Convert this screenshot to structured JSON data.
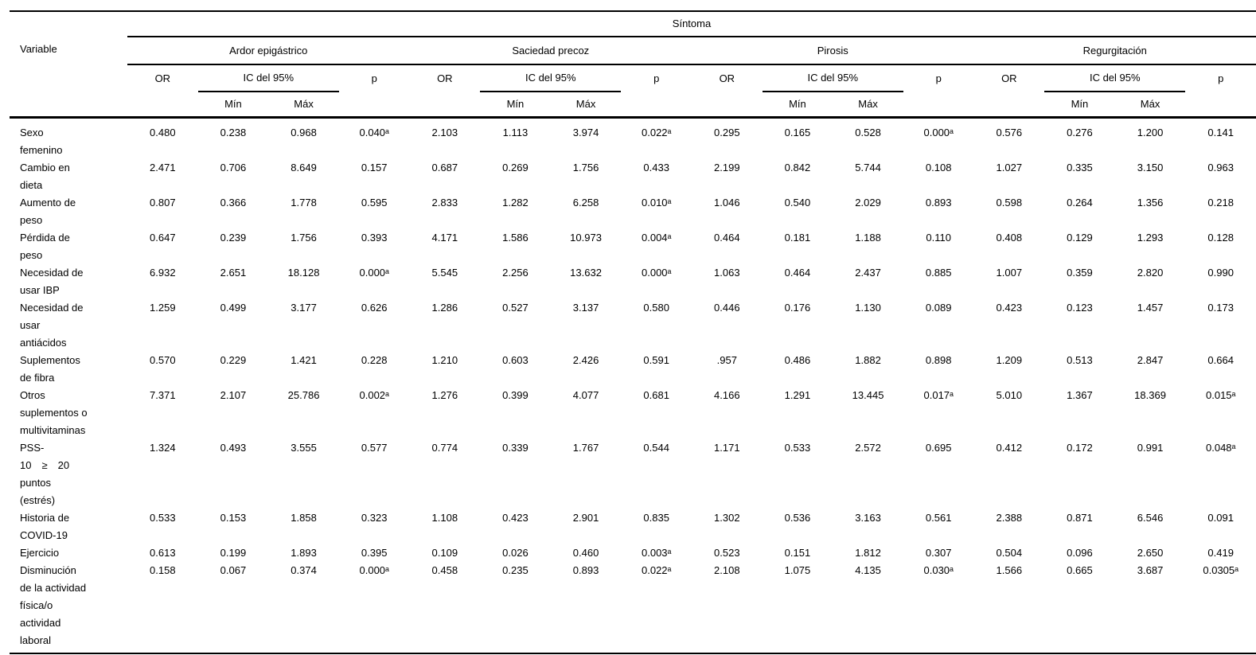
{
  "colors": {
    "background": "#ffffff",
    "text": "#000000",
    "rule": "#000000"
  },
  "table": {
    "corner_header": "Variable",
    "span_header": "Síntoma",
    "groups": [
      "Ardor epigástrico",
      "Saciedad precoz",
      "Pirosis",
      "Regurgitación"
    ],
    "stat_headers": {
      "or": "OR",
      "ic": "IC del 95%",
      "p": "p",
      "min": "Mín",
      "max": "Máx"
    },
    "rows": [
      {
        "label": "Sexo\nfemenino",
        "values": [
          "0.480",
          "0.238",
          "0.968",
          "0.040ᵃ",
          "2.103",
          "1.113",
          "3.974",
          "0.022ᵃ",
          "0.295",
          "0.165",
          "0.528",
          "0.000ᵃ",
          "0.576",
          "0.276",
          "1.200",
          "0.141"
        ]
      },
      {
        "label": "Cambio en\ndieta",
        "values": [
          "2.471",
          "0.706",
          "8.649",
          "0.157",
          "0.687",
          "0.269",
          "1.756",
          "0.433",
          "2.199",
          "0.842",
          "5.744",
          "0.108",
          "1.027",
          "0.335",
          "3.150",
          "0.963"
        ]
      },
      {
        "label": "Aumento de\npeso",
        "values": [
          "0.807",
          "0.366",
          "1.778",
          "0.595",
          "2.833",
          "1.282",
          "6.258",
          "0.010ᵃ",
          "1.046",
          "0.540",
          "2.029",
          "0.893",
          "0.598",
          "0.264",
          "1.356",
          "0.218"
        ]
      },
      {
        "label": "Pérdida de\npeso",
        "values": [
          "0.647",
          "0.239",
          "1.756",
          "0.393",
          "4.171",
          "1.586",
          "10.973",
          "0.004ᵃ",
          "0.464",
          "0.181",
          "1.188",
          "0.110",
          "0.408",
          "0.129",
          "1.293",
          "0.128"
        ]
      },
      {
        "label": "Necesidad de\nusar IBP",
        "values": [
          "6.932",
          "2.651",
          "18.128",
          "0.000ᵃ",
          "5.545",
          "2.256",
          "13.632",
          "0.000ᵃ",
          "1.063",
          "0.464",
          "2.437",
          "0.885",
          "1.007",
          "0.359",
          "2.820",
          "0.990"
        ]
      },
      {
        "label": "Necesidad de\nusar\nantiácidos",
        "values": [
          "1.259",
          "0.499",
          "3.177",
          "0.626",
          "1.286",
          "0.527",
          "3.137",
          "0.580",
          "0.446",
          "0.176",
          "1.130",
          "0.089",
          "0.423",
          "0.123",
          "1.457",
          "0.173"
        ]
      },
      {
        "label": "Suplementos\nde fibra",
        "values": [
          "0.570",
          "0.229",
          "1.421",
          "0.228",
          "1.210",
          "0.603",
          "2.426",
          "0.591",
          ".957",
          "0.486",
          "1.882",
          "0.898",
          "1.209",
          "0.513",
          "2.847",
          "0.664"
        ]
      },
      {
        "label": "Otros\nsuplementos o\nmultivitaminas",
        "values": [
          "7.371",
          "2.107",
          "25.786",
          "0.002ᵃ",
          "1.276",
          "0.399",
          "4.077",
          "0.681",
          "4.166",
          "1.291",
          "13.445",
          "0.017ᵃ",
          "5.010",
          "1.367",
          "18.369",
          "0.015ᵃ"
        ]
      },
      {
        "label": "PSS-\n10 ≥ 20\npuntos\n(estrés)",
        "values": [
          "1.324",
          "0.493",
          "3.555",
          "0.577",
          "0.774",
          "0.339",
          "1.767",
          "0.544",
          "1.171",
          "0.533",
          "2.572",
          "0.695",
          "0.412",
          "0.172",
          "0.991",
          "0.048ᵃ"
        ]
      },
      {
        "label": "Historia de\nCOVID-19",
        "values": [
          "0.533",
          "0.153",
          "1.858",
          "0.323",
          "1.108",
          "0.423",
          "2.901",
          "0.835",
          "1.302",
          "0.536",
          "3.163",
          "0.561",
          "2.388",
          "0.871",
          "6.546",
          "0.091"
        ]
      },
      {
        "label": "Ejercicio",
        "values": [
          "0.613",
          "0.199",
          "1.893",
          "0.395",
          "0.109",
          "0.026",
          "0.460",
          "0.003ᵃ",
          "0.523",
          "0.151",
          "1.812",
          "0.307",
          "0.504",
          "0.096",
          "2.650",
          "0.419"
        ]
      },
      {
        "label": "Disminución\nde la actividad\nfísica/o\nactividad\nlaboral",
        "values": [
          "0.158",
          "0.067",
          "0.374",
          "0.000ᵃ",
          "0.458",
          "0.235",
          "0.893",
          "0.022ᵃ",
          "2.108",
          "1.075",
          "4.135",
          "0.030ᵃ",
          "1.566",
          "0.665",
          "3.687",
          "0.0305ᵃ"
        ]
      }
    ]
  }
}
